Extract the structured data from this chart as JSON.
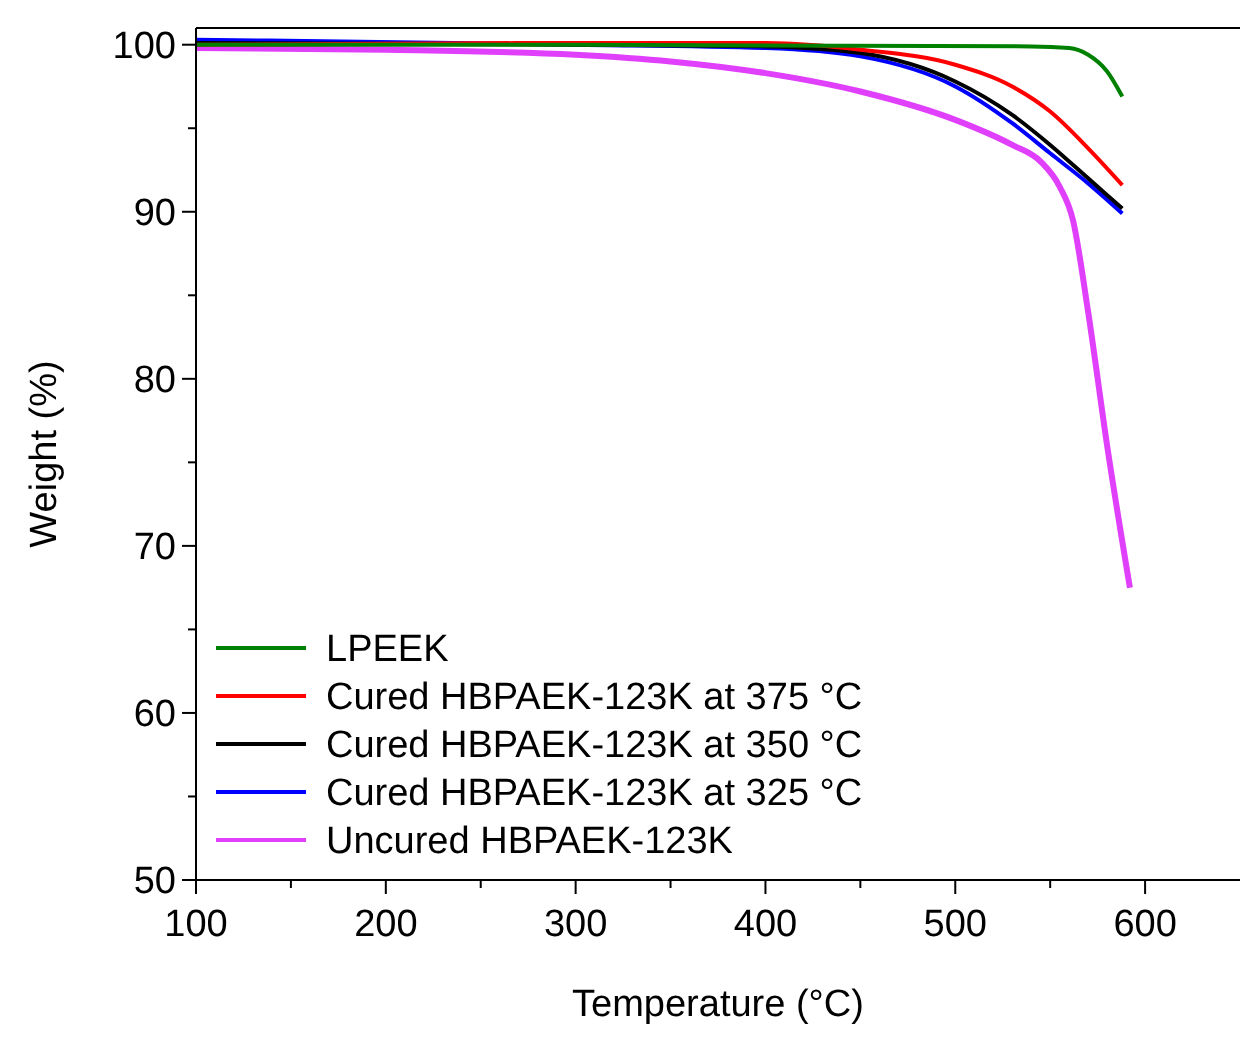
{
  "chart_data": {
    "type": "line",
    "xlabel": "Temperature (°C)",
    "ylabel": "Weight (%)",
    "xlim": [
      100,
      650
    ],
    "ylim": [
      50,
      101
    ],
    "xticks": [
      100,
      {
        "value": 150,
        "label": null
      },
      200,
      {
        "value": 250,
        "label": null
      },
      300,
      {
        "value": 350,
        "label": null
      },
      400,
      {
        "value": 450,
        "label": null
      },
      500,
      {
        "value": 550,
        "label": null
      },
      600
    ],
    "yticks": [
      50,
      {
        "value": 55,
        "label": null
      },
      60,
      {
        "value": 65,
        "label": null
      },
      70,
      {
        "value": 75,
        "label": null
      },
      80,
      {
        "value": 85,
        "label": null
      },
      90,
      {
        "value": 95,
        "label": null
      },
      100
    ],
    "legend": "bottom left",
    "grid": false,
    "marker": "none",
    "line_style": "solid",
    "series": [
      {
        "name": "LPEEK",
        "color": "#008000",
        "x": [
          100,
          300,
          540,
          560,
          570,
          580,
          588
        ],
        "values": [
          100,
          100,
          99.9,
          99.8,
          99.4,
          98.4,
          96.9
        ]
      },
      {
        "name": "Cured HBPAEK-123K at 375 °C",
        "color": "#ff0000",
        "x": [
          100,
          300,
          400,
          450,
          500,
          530,
          550,
          570,
          588
        ],
        "values": [
          100,
          100.1,
          100.1,
          99.7,
          98.8,
          97.5,
          96.0,
          93.8,
          91.6
        ]
      },
      {
        "name": "Cured HBPAEK-123K at 350 °C",
        "color": "#000000",
        "x": [
          100,
          300,
          400,
          450,
          500,
          530,
          550,
          570,
          588
        ],
        "values": [
          100.1,
          100,
          99.9,
          99.5,
          97.8,
          95.8,
          94.0,
          92.0,
          90.2
        ]
      },
      {
        "name": "Cured HBPAEK-123K at 325 °C",
        "color": "#0000ff",
        "x": [
          100,
          300,
          400,
          450,
          500,
          530,
          550,
          570,
          588
        ],
        "values": [
          100.3,
          100,
          99.8,
          99.3,
          97.5,
          95.3,
          93.5,
          91.7,
          89.9
        ]
      },
      {
        "name": "Uncured HBPAEK-123K",
        "color": "#e040fb",
        "x": [
          100,
          200,
          300,
          350,
          400,
          450,
          500,
          530,
          545,
          555,
          562,
          570,
          580,
          592
        ],
        "values": [
          99.8,
          99.7,
          99.4,
          99.0,
          98.3,
          97.2,
          95.5,
          94.0,
          93.0,
          91.5,
          89.5,
          84,
          76,
          67.5
        ]
      }
    ]
  }
}
